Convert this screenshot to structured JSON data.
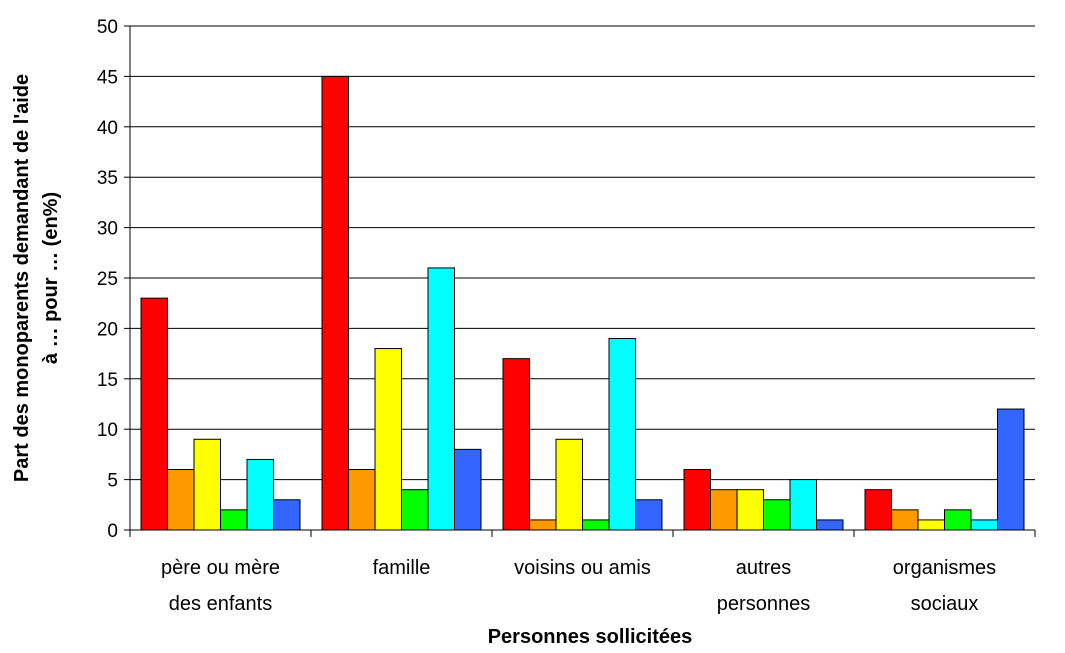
{
  "chart_data": {
    "type": "bar",
    "title": "",
    "xlabel": "Personnes sollicitées",
    "ylabel": [
      "Part des monoparents demandant de l'aide",
      "à … pour … (en%)"
    ],
    "ylim": [
      0,
      50
    ],
    "yticks": [
      0,
      5,
      10,
      15,
      20,
      25,
      30,
      35,
      40,
      45,
      50
    ],
    "grid": true,
    "legend": "none",
    "categories": [
      [
        "père ou mère",
        "des enfants"
      ],
      [
        "famille"
      ],
      [
        "voisins ou amis"
      ],
      [
        "autres",
        "personnes"
      ],
      [
        "organismes",
        "sociaux"
      ]
    ],
    "series": [
      {
        "color": "#ff0000",
        "values": [
          23,
          45,
          17,
          6,
          4
        ]
      },
      {
        "color": "#ff9900",
        "values": [
          6,
          6,
          1,
          4,
          2
        ]
      },
      {
        "color": "#ffff00",
        "values": [
          9,
          18,
          9,
          4,
          1
        ]
      },
      {
        "color": "#00ff00",
        "values": [
          2,
          4,
          1,
          3,
          2
        ]
      },
      {
        "color": "#00ffff",
        "values": [
          7,
          26,
          19,
          5,
          1
        ]
      },
      {
        "color": "#3366ff",
        "values": [
          3,
          8,
          3,
          1,
          12
        ]
      }
    ]
  }
}
